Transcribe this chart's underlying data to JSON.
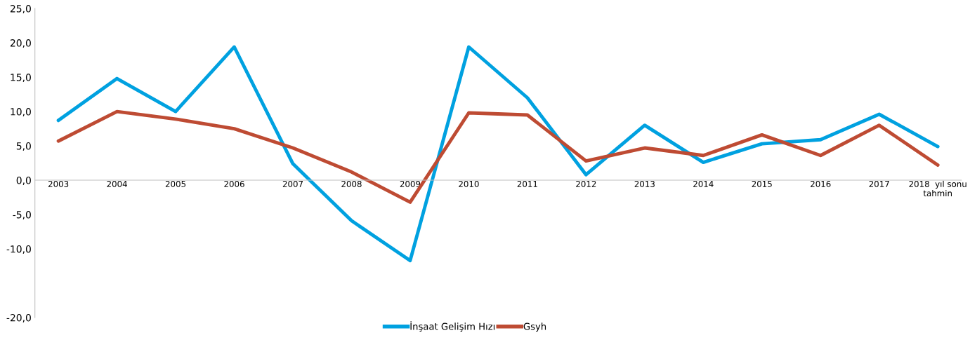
{
  "chart_data": {
    "type": "line",
    "categories": [
      "2003",
      "2004",
      "2005",
      "2006",
      "2007",
      "2008",
      "2009",
      "2010",
      "2011",
      "2012",
      "2013",
      "2014",
      "2015",
      "2016",
      "2017",
      "2018  yıl sonu\ntahmin"
    ],
    "series": [
      {
        "name": "İnşaat Gelişim Hızı",
        "color": "#00a1e0",
        "values": [
          8.7,
          14.8,
          10.0,
          19.4,
          2.4,
          -5.9,
          -11.7,
          19.4,
          12.0,
          0.8,
          8.0,
          2.6,
          5.3,
          5.9,
          9.6,
          4.9
        ]
      },
      {
        "name": "Gsyh",
        "color": "#be4b33",
        "values": [
          5.7,
          10.0,
          8.9,
          7.5,
          4.7,
          1.2,
          -3.2,
          9.8,
          9.5,
          2.8,
          4.7,
          3.6,
          6.6,
          3.6,
          8.0,
          2.2
        ]
      }
    ],
    "ylim": [
      -20,
      25
    ],
    "yticks": [
      {
        "value": 25,
        "label": "25,0"
      },
      {
        "value": 20,
        "label": "20,0"
      },
      {
        "value": 15,
        "label": "15,0"
      },
      {
        "value": 10,
        "label": "10,0"
      },
      {
        "value": 5,
        "label": "5,0"
      },
      {
        "value": 0,
        "label": "0,0"
      },
      {
        "value": -5,
        "label": "-5,0"
      },
      {
        "value": -10,
        "label": "-10,0"
      },
      {
        "value": -20,
        "label": "-20,0"
      }
    ],
    "grid": false,
    "legend": "bottom",
    "marker": "none",
    "line_style": "solid"
  }
}
